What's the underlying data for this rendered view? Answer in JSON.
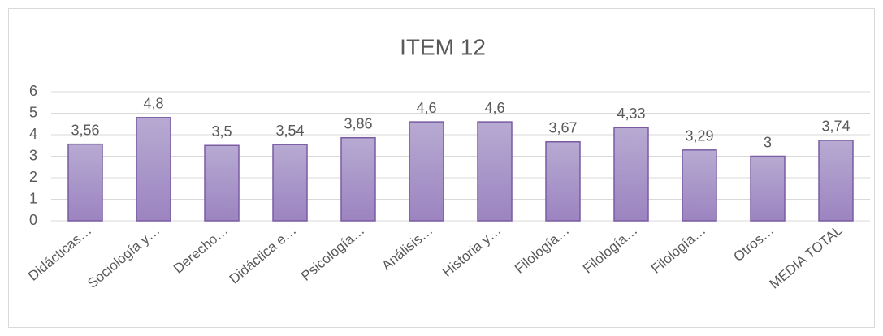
{
  "chart_data": {
    "type": "bar",
    "title": "ITEM 12",
    "categories": [
      "Didácticas…",
      "Sociología y…",
      "Derecho…",
      "Didáctica e…",
      "Psicología…",
      "Análisis…",
      "Historia y…",
      "Filología…",
      "Filología…",
      "Filología…",
      "Otros…",
      "MEDIA TOTAL"
    ],
    "values": [
      3.56,
      4.8,
      3.5,
      3.54,
      3.86,
      4.6,
      4.6,
      3.67,
      4.33,
      3.29,
      3,
      3.74
    ],
    "value_labels": [
      "3,56",
      "4,8",
      "3,5",
      "3,54",
      "3,86",
      "4,6",
      "4,6",
      "3,67",
      "4,33",
      "3,29",
      "3",
      "3,74"
    ],
    "color": "#a996c7",
    "ylim": [
      0,
      6
    ],
    "yticks": [
      0,
      1,
      2,
      3,
      4,
      5,
      6
    ],
    "grid": true
  }
}
